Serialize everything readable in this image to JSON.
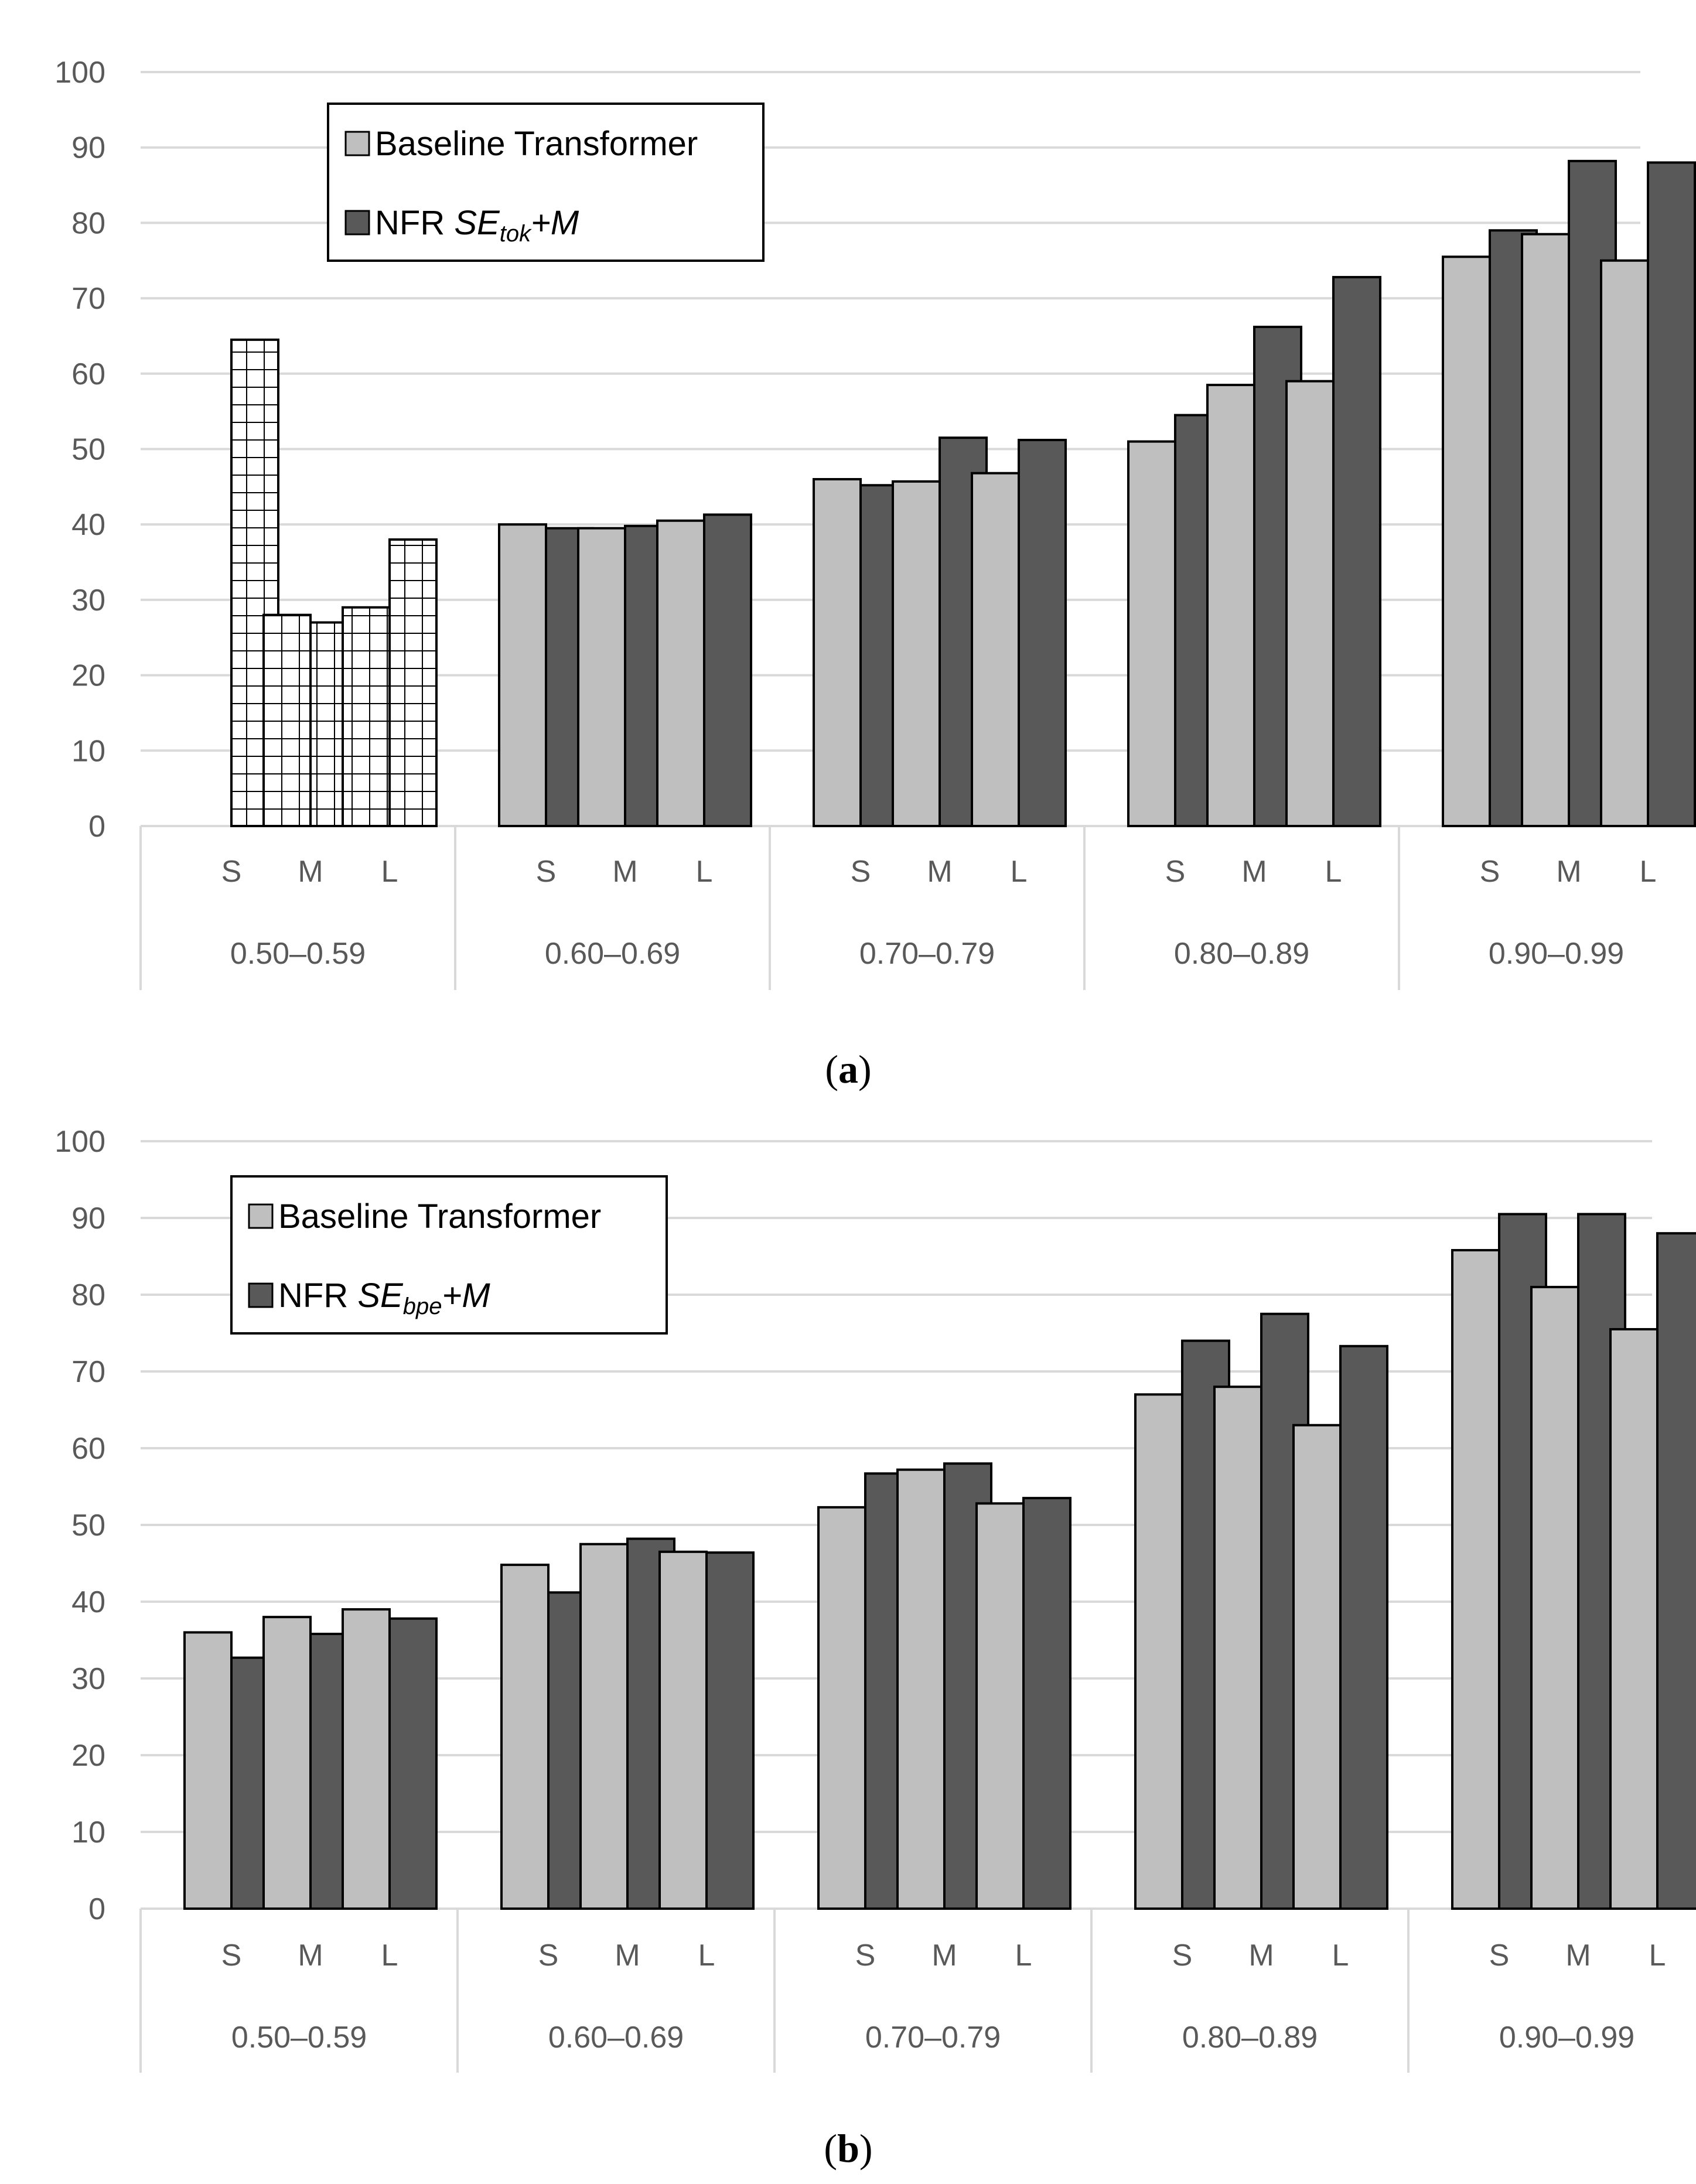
{
  "chart_data": [
    {
      "type": "bar",
      "caption": "a",
      "ylim": [
        0,
        100
      ],
      "yticks": [
        "0",
        "10",
        "20",
        "30",
        "40",
        "50",
        "60",
        "70",
        "80",
        "90",
        "100"
      ],
      "grid": true,
      "legend_position": "top-left",
      "groups": [
        "0.50–0.59",
        "0.60–0.69",
        "0.70–0.79",
        "0.80–0.89",
        "0.90–0.99"
      ],
      "subcategories": [
        "S",
        "M",
        "L"
      ],
      "series": [
        {
          "name": "Baseline Transformer",
          "color": "#bfbfbf",
          "values": [
            0,
            28,
            29,
            40,
            39.5,
            40.5,
            46,
            45.7,
            46.8,
            51,
            58.5,
            59,
            75.5,
            78.5,
            75
          ]
        },
        {
          "name": "NFR",
          "name_math": "SE",
          "name_sub": "tok",
          "name_suffix": "+M",
          "color": "#595959",
          "values": [
            64.5,
            27,
            38,
            39.5,
            39.8,
            41.3,
            45.2,
            51.5,
            51.2,
            54.5,
            66.2,
            72.8,
            79,
            88.2,
            88
          ]
        }
      ],
      "hatched_group": "0.50–0.59"
    },
    {
      "type": "bar",
      "caption": "b",
      "ylim": [
        0,
        100
      ],
      "yticks": [
        "0",
        "10",
        "20",
        "30",
        "40",
        "50",
        "60",
        "70",
        "80",
        "90",
        "100"
      ],
      "grid": true,
      "legend_position": "top-left",
      "groups": [
        "0.50–0.59",
        "0.60–0.69",
        "0.70–0.79",
        "0.80–0.89",
        "0.90–0.99"
      ],
      "subcategories": [
        "S",
        "M",
        "L"
      ],
      "series": [
        {
          "name": "Baseline Transformer",
          "color": "#bfbfbf",
          "values": [
            36,
            38,
            39,
            44.8,
            47.5,
            46.5,
            52.3,
            57.2,
            52.8,
            67,
            68,
            63,
            85.8,
            81,
            75.5
          ]
        },
        {
          "name": "NFR",
          "name_math": "SE",
          "name_sub": "bpe",
          "name_suffix": "+M",
          "color": "#595959",
          "values": [
            32.7,
            35.8,
            37.8,
            41.2,
            48.2,
            46.4,
            56.7,
            58,
            53.5,
            74,
            77.5,
            73.3,
            90.5,
            90.5,
            88
          ]
        }
      ]
    }
  ]
}
